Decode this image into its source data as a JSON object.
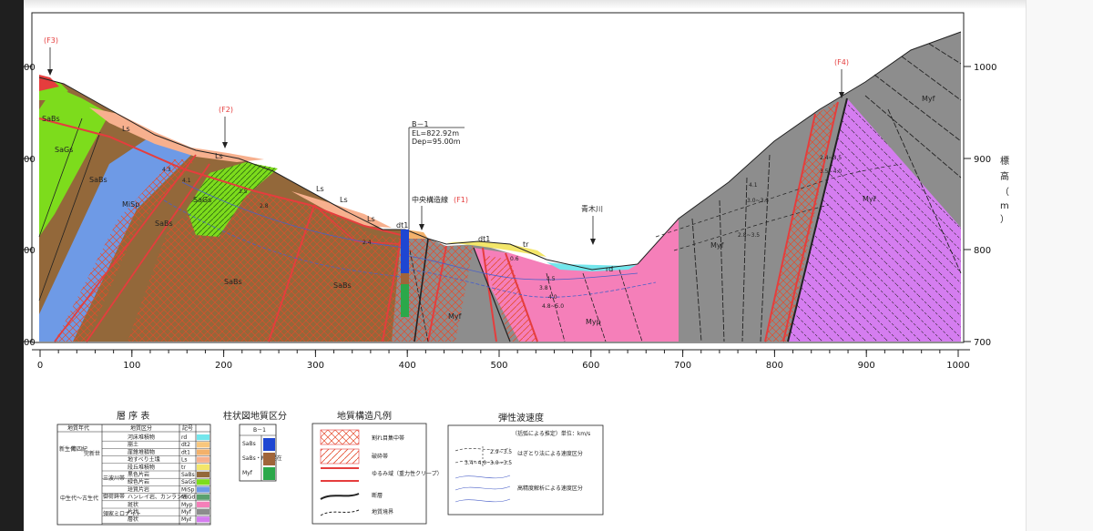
{
  "section": {
    "x_ticks": [
      "0",
      "100",
      "200",
      "300",
      "400",
      "500",
      "600",
      "700",
      "800",
      "900",
      "1000"
    ],
    "y_ticks_right": [
      "1000",
      "900",
      "800",
      "700"
    ],
    "y_ticks_left": [
      "00",
      "00",
      "00",
      "00"
    ],
    "y_axis_label": [
      "標",
      "高",
      "（",
      "m",
      "）"
    ],
    "faults": {
      "f1": "(F1)",
      "f2": "(F2)",
      "f3": "(F3)",
      "f4": "(F4)"
    },
    "borehole": {
      "name": "B－1",
      "elevation": "EL=822.92m",
      "depth": "Dep=95.00m"
    },
    "central_line": "中央構造線",
    "river": "青木川",
    "units": {
      "sabs": "SaBs",
      "sags": "SaGs",
      "misp": "MiSp",
      "ls": "Ls",
      "dt1": "dt1",
      "tr": "tr",
      "rd": "rd",
      "myf": "Myf",
      "myp": "Myp",
      "myl": "Myℓ"
    },
    "velocity_labels": [
      "4.3",
      "4.1",
      "3.5",
      "2.8",
      "2.4",
      "0.6",
      "4.5",
      "3.8",
      "4.0",
      "2.8~3.5",
      "3.0~3.5",
      "4.8~5.0",
      "4.1",
      "2.4~3.5",
      "3.5~4.0",
      "4.0",
      "4.3",
      "4.2",
      "3.8"
    ]
  },
  "legend": {
    "strat_title": "層 序 表",
    "strat_headers": [
      "地質年代",
      "地質区分",
      "記号"
    ],
    "strat_eras": [
      "新生代",
      "第四紀",
      "完新世",
      "中生代～古生代"
    ],
    "strat_groups": [
      "三波川帯",
      "御荷鉾帯",
      "領家ミロナイト"
    ],
    "strat_rows": [
      {
        "name": "河床堆積物",
        "code": "rd",
        "color": "#73e6ec"
      },
      {
        "name": "崩土",
        "code": "dt2",
        "color": "#f8c77d"
      },
      {
        "name": "崖錐堆積物",
        "code": "dt1",
        "color": "#f3b16b"
      },
      {
        "name": "地すべり土塊",
        "code": "Ls",
        "color": "#f7b08e"
      },
      {
        "name": "段丘堆積物",
        "code": "tr",
        "color": "#f3e66a"
      },
      {
        "name": "黒色片岩",
        "code": "SaBs",
        "color": "#93683a"
      },
      {
        "name": "緑色片岩",
        "code": "SaGs",
        "color": "#7ddc1c"
      },
      {
        "name": "珪質片岩",
        "code": "MiSp",
        "color": "#6e9ae6"
      },
      {
        "name": "ハンレイ岩、カンラン岩",
        "code": "MiGd",
        "color": "#5aa06e"
      },
      {
        "name": "斑状",
        "code": "Myp",
        "color": "#f57fb9"
      },
      {
        "name": "片状",
        "code": "Myf",
        "color": "#8d8d8d"
      },
      {
        "name": "層状",
        "code": "Myℓ",
        "color": "#d57df0"
      }
    ],
    "column_title": "柱状図地質区分",
    "column_header": "B－1",
    "column_rows": [
      {
        "name": "SaBs",
        "color": "#1e46d2"
      },
      {
        "name": "SaBs・Myf混在",
        "color": "#a0653a"
      },
      {
        "name": "Myf",
        "color": "#2ba84a"
      }
    ],
    "struct_title": "地質構造凡例",
    "struct_items": [
      "割れ目集中帯",
      "破砕帯",
      "ゆるみ域（重力性クリープ）",
      "断層",
      "地質境界"
    ],
    "vel_title": "弾性波速度",
    "vel_note": "（括弧による推定）単位：km/s",
    "vel_items": [
      "はぎとり法による速度区分",
      "高精度解析による速度区分"
    ],
    "vel_samples": [
      "2.9~3.5",
      "3.4~4.0",
      "3.0~3.5"
    ]
  }
}
